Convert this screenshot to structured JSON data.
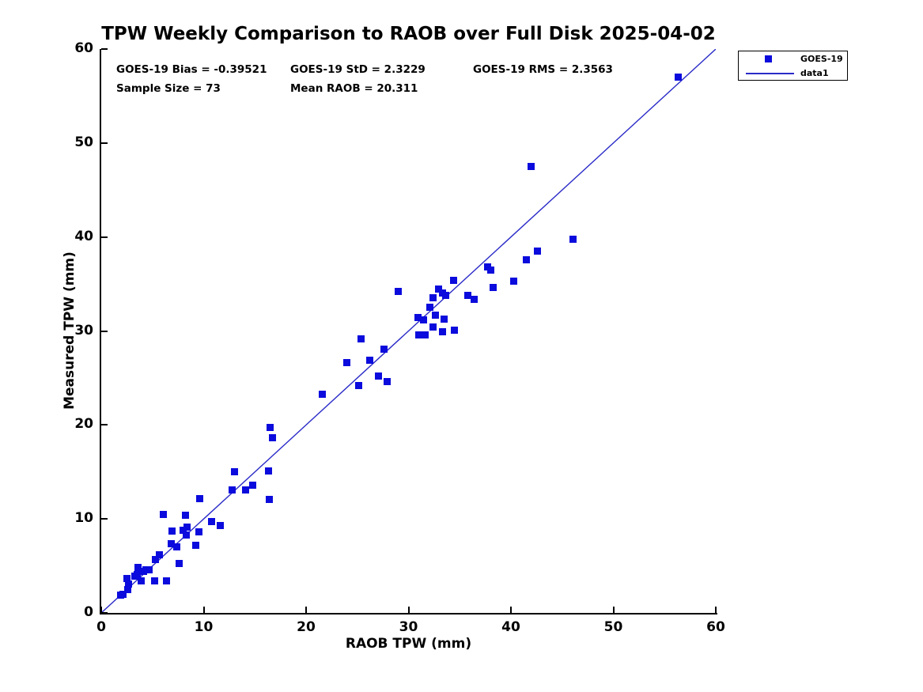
{
  "title": "TPW Weekly Comparison to RAOB over Full Disk 2025-04-02",
  "stats": {
    "bias": "GOES-19 Bias = -0.39521",
    "std": "GOES-19 StD = 2.3229",
    "rms": "GOES-19 RMS = 2.3563",
    "sample_size": "Sample Size = 73",
    "mean_raob": "Mean RAOB = 20.311"
  },
  "legend": {
    "marker_label": "GOES-19",
    "line_label": "data1"
  },
  "colors": {
    "marker": "#0b0bdd",
    "line": "#2a2ac8",
    "axis": "#000000"
  },
  "chart_data": {
    "type": "scatter",
    "title": "TPW Weekly Comparison to RAOB over Full Disk 2025-04-02",
    "xlabel": "RAOB TPW (mm)",
    "ylabel": "Measured TPW (mm)",
    "xlim": [
      0,
      60
    ],
    "ylim": [
      0,
      60
    ],
    "xticks": [
      0,
      10,
      20,
      30,
      40,
      50,
      60
    ],
    "yticks": [
      0,
      10,
      20,
      30,
      40,
      50,
      60
    ],
    "grid": false,
    "legend_position": "top-right-outside",
    "annotations": [
      "GOES-19 Bias = -0.39521",
      "GOES-19 StD = 2.3229",
      "GOES-19 RMS = 2.3563",
      "Sample Size = 73",
      "Mean RAOB = 20.311"
    ],
    "series": [
      {
        "name": "GOES-19",
        "type": "scatter",
        "marker": "filled-square",
        "color": "#0b0bdd",
        "points": [
          [
            1.9,
            1.9
          ],
          [
            2.1,
            2.0
          ],
          [
            2.6,
            2.5
          ],
          [
            2.7,
            3.1
          ],
          [
            2.5,
            3.7
          ],
          [
            3.3,
            3.9
          ],
          [
            3.9,
            3.4
          ],
          [
            3.5,
            4.1
          ],
          [
            3.6,
            4.8
          ],
          [
            4.1,
            4.4
          ],
          [
            4.4,
            4.6
          ],
          [
            4.7,
            4.6
          ],
          [
            5.2,
            3.4
          ],
          [
            6.4,
            3.4
          ],
          [
            5.3,
            5.7
          ],
          [
            5.7,
            6.2
          ],
          [
            6.1,
            10.5
          ],
          [
            6.8,
            7.4
          ],
          [
            7.4,
            7.0
          ],
          [
            6.9,
            8.7
          ],
          [
            7.6,
            5.3
          ],
          [
            8.0,
            8.8
          ],
          [
            8.4,
            9.1
          ],
          [
            8.3,
            8.3
          ],
          [
            8.2,
            10.4
          ],
          [
            9.2,
            7.2
          ],
          [
            9.5,
            8.6
          ],
          [
            10.8,
            9.7
          ],
          [
            11.6,
            9.3
          ],
          [
            9.6,
            12.2
          ],
          [
            12.8,
            13.1
          ],
          [
            13.0,
            15.0
          ],
          [
            14.1,
            13.1
          ],
          [
            14.8,
            13.6
          ],
          [
            16.4,
            12.1
          ],
          [
            16.3,
            15.1
          ],
          [
            16.7,
            18.6
          ],
          [
            16.5,
            19.7
          ],
          [
            21.6,
            23.3
          ],
          [
            24.0,
            26.6
          ],
          [
            25.1,
            24.2
          ],
          [
            25.4,
            29.2
          ],
          [
            26.2,
            26.9
          ],
          [
            27.1,
            25.2
          ],
          [
            27.6,
            28.1
          ],
          [
            27.9,
            24.6
          ],
          [
            29.0,
            34.2
          ],
          [
            30.9,
            31.4
          ],
          [
            31.0,
            29.6
          ],
          [
            31.5,
            31.2
          ],
          [
            31.6,
            29.6
          ],
          [
            32.1,
            32.5
          ],
          [
            32.4,
            30.4
          ],
          [
            32.6,
            31.7
          ],
          [
            32.4,
            33.5
          ],
          [
            32.9,
            34.5
          ],
          [
            33.3,
            34.0
          ],
          [
            33.6,
            33.8
          ],
          [
            33.3,
            29.9
          ],
          [
            33.5,
            31.3
          ],
          [
            34.4,
            35.4
          ],
          [
            34.5,
            30.1
          ],
          [
            35.8,
            33.8
          ],
          [
            36.4,
            33.4
          ],
          [
            37.7,
            36.8
          ],
          [
            38.0,
            36.5
          ],
          [
            38.3,
            34.6
          ],
          [
            40.3,
            35.3
          ],
          [
            41.5,
            37.6
          ],
          [
            42.6,
            38.5
          ],
          [
            46.1,
            39.8
          ],
          [
            42.0,
            47.5
          ],
          [
            56.3,
            57.0
          ]
        ]
      },
      {
        "name": "data1",
        "type": "line",
        "color": "#2a2ac8",
        "points": [
          [
            0,
            0
          ],
          [
            60,
            60
          ]
        ]
      }
    ]
  }
}
